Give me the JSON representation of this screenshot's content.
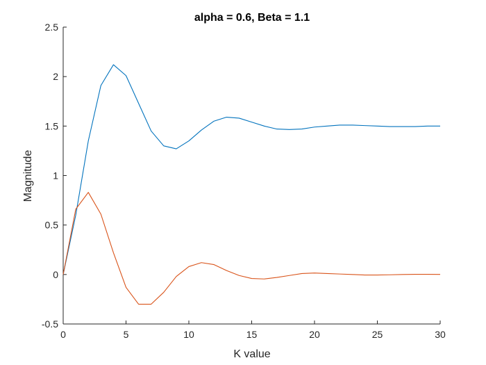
{
  "chart_data": {
    "type": "line",
    "title": "alpha = 0.6, Beta = 1.1",
    "xlabel": "K value",
    "ylabel": "Magnitude",
    "xlim": [
      0,
      30
    ],
    "ylim": [
      -0.5,
      2.5
    ],
    "xticks": [
      0,
      5,
      10,
      15,
      20,
      25,
      30
    ],
    "xtick_labels": [
      "0",
      "5",
      "10",
      "15",
      "20",
      "25",
      "30"
    ],
    "yticks": [
      -0.5,
      0,
      0.5,
      1,
      1.5,
      2,
      2.5
    ],
    "ytick_labels": [
      "-0.5",
      "0",
      "0.5",
      "1",
      "1.5",
      "2",
      "2.5"
    ],
    "grid": false,
    "x": [
      0,
      1,
      2,
      3,
      4,
      5,
      6,
      7,
      8,
      9,
      10,
      11,
      12,
      13,
      14,
      15,
      16,
      17,
      18,
      19,
      20,
      21,
      22,
      23,
      24,
      25,
      26,
      27,
      28,
      29,
      30
    ],
    "series": [
      {
        "color": "#0072BD",
        "values": [
          0,
          0.6,
          1.35,
          1.91,
          2.12,
          2.01,
          1.73,
          1.45,
          1.3,
          1.27,
          1.35,
          1.46,
          1.55,
          1.59,
          1.58,
          1.54,
          1.5,
          1.47,
          1.465,
          1.47,
          1.49,
          1.5,
          1.51,
          1.51,
          1.505,
          1.5,
          1.495,
          1.495,
          1.495,
          1.5,
          1.5
        ]
      },
      {
        "color": "#D95319",
        "values": [
          0,
          0.66,
          0.83,
          0.61,
          0.22,
          -0.13,
          -0.3,
          -0.3,
          -0.18,
          -0.02,
          0.08,
          0.12,
          0.1,
          0.04,
          -0.01,
          -0.04,
          -0.045,
          -0.03,
          -0.01,
          0.01,
          0.015,
          0.01,
          0.005,
          0,
          -0.005,
          -0.005,
          -0.003,
          0,
          0.002,
          0.002,
          0.001
        ]
      }
    ]
  }
}
